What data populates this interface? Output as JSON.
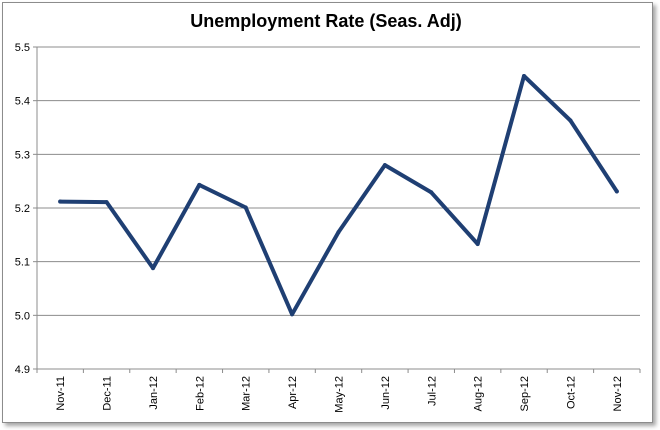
{
  "chart_data": {
    "type": "line",
    "title": "Unemployment Rate (Seas. Adj)",
    "xlabel": "",
    "ylabel": "",
    "categories": [
      "Nov-11",
      "Dec-11",
      "Jan-12",
      "Feb-12",
      "Mar-12",
      "Apr-12",
      "May-12",
      "Jun-12",
      "Jul-12",
      "Aug-12",
      "Sep-12",
      "Oct-12",
      "Nov-12"
    ],
    "series": [
      {
        "values": [
          5.212,
          5.211,
          5.088,
          5.243,
          5.201,
          5.002,
          5.155,
          5.28,
          5.229,
          5.133,
          5.446,
          5.363,
          5.231
        ],
        "color": "#1f3f73"
      }
    ],
    "ylim": [
      4.9,
      5.5
    ],
    "yticks": [
      "4.9",
      "5.0",
      "5.1",
      "5.2",
      "5.3",
      "5.4",
      "5.5"
    ],
    "grid": true,
    "legend": "none"
  }
}
